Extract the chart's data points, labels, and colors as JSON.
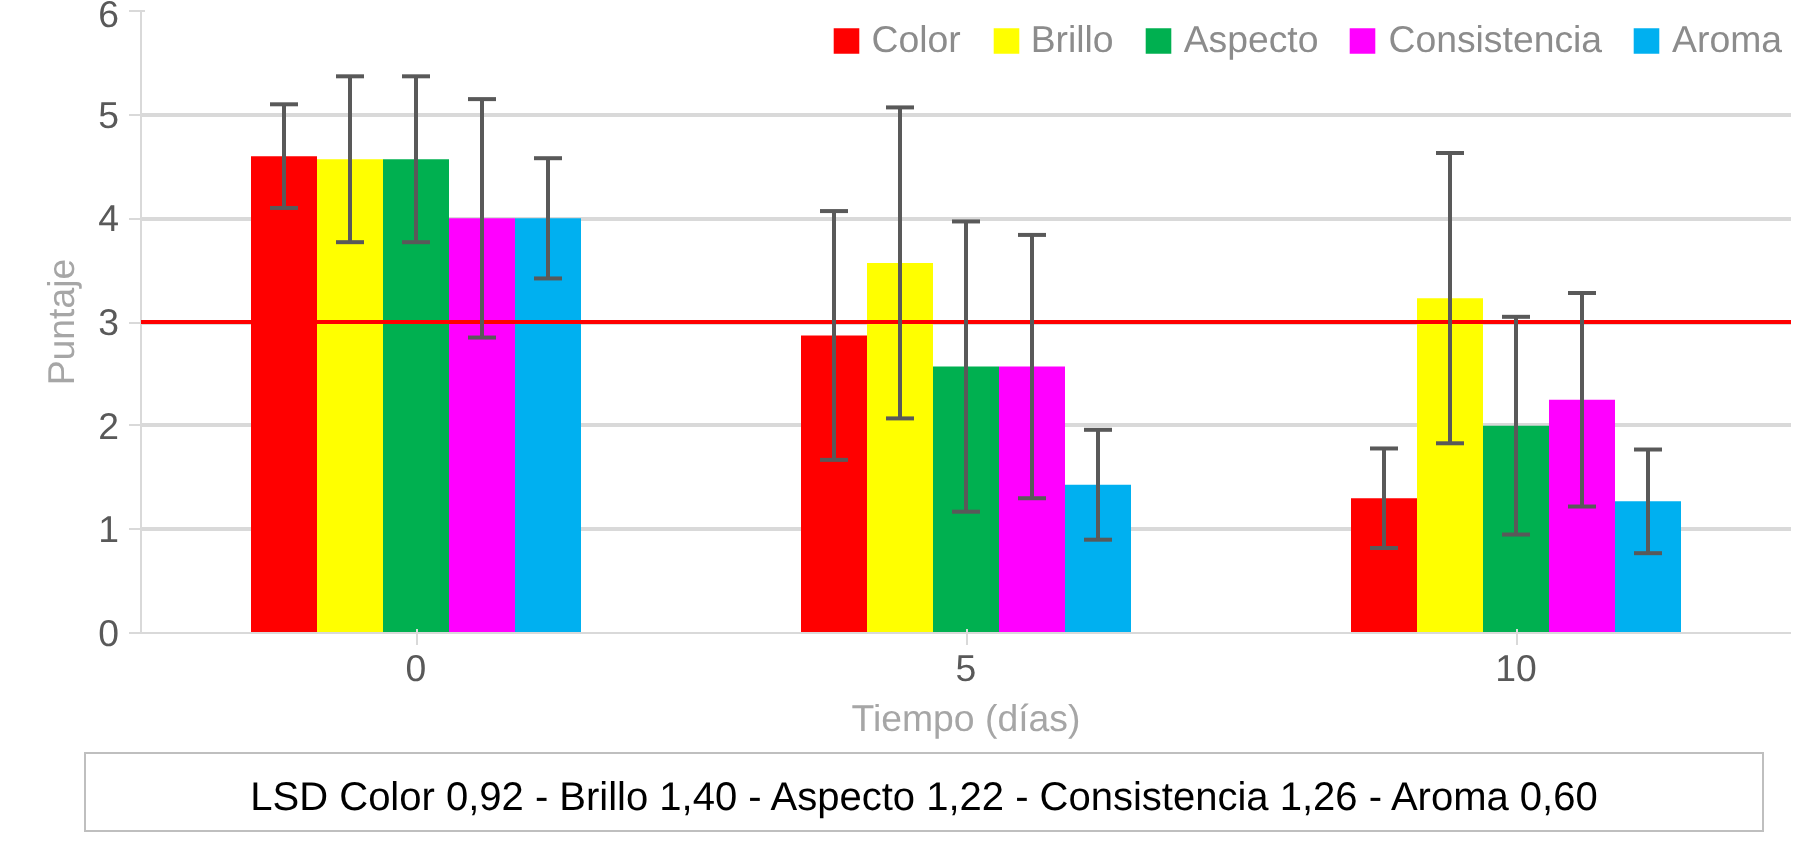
{
  "chart_data": {
    "type": "bar",
    "xlabel": "Tiempo (días)",
    "ylabel": "Puntaje",
    "categories": [
      "0",
      "5",
      "10"
    ],
    "series": [
      {
        "name": "Color",
        "color": "#ff0000",
        "values": [
          4.6,
          2.87,
          1.3
        ],
        "errors": [
          0.5,
          1.2,
          0.48
        ]
      },
      {
        "name": "Brillo",
        "color": "#ffff00",
        "values": [
          4.57,
          3.57,
          3.23
        ],
        "errors": [
          0.8,
          1.5,
          1.4
        ]
      },
      {
        "name": "Aspecto",
        "color": "#00b050",
        "values": [
          4.57,
          2.57,
          2.0
        ],
        "errors": [
          0.8,
          1.4,
          1.05
        ]
      },
      {
        "name": "Consistencia",
        "color": "#ff00ff",
        "values": [
          4.0,
          2.57,
          2.25
        ],
        "errors": [
          1.15,
          1.27,
          1.03
        ]
      },
      {
        "name": "Aroma",
        "color": "#00b0f0",
        "values": [
          4.0,
          1.43,
          1.27
        ],
        "errors": [
          0.58,
          0.53,
          0.5
        ]
      }
    ],
    "ylim": [
      0,
      6
    ],
    "yticks": [
      0,
      1,
      2,
      3,
      4,
      5,
      6
    ],
    "grid": "y",
    "legend": "top right",
    "ref_lines": [
      {
        "axis": "y",
        "value": 3,
        "color": "#ff0000"
      }
    ],
    "annotations": [
      "LSD Color 0,92 - Brillo 1,40 - Aspecto 1,22 - Consistencia 1,26 - Aroma 0,60"
    ]
  }
}
